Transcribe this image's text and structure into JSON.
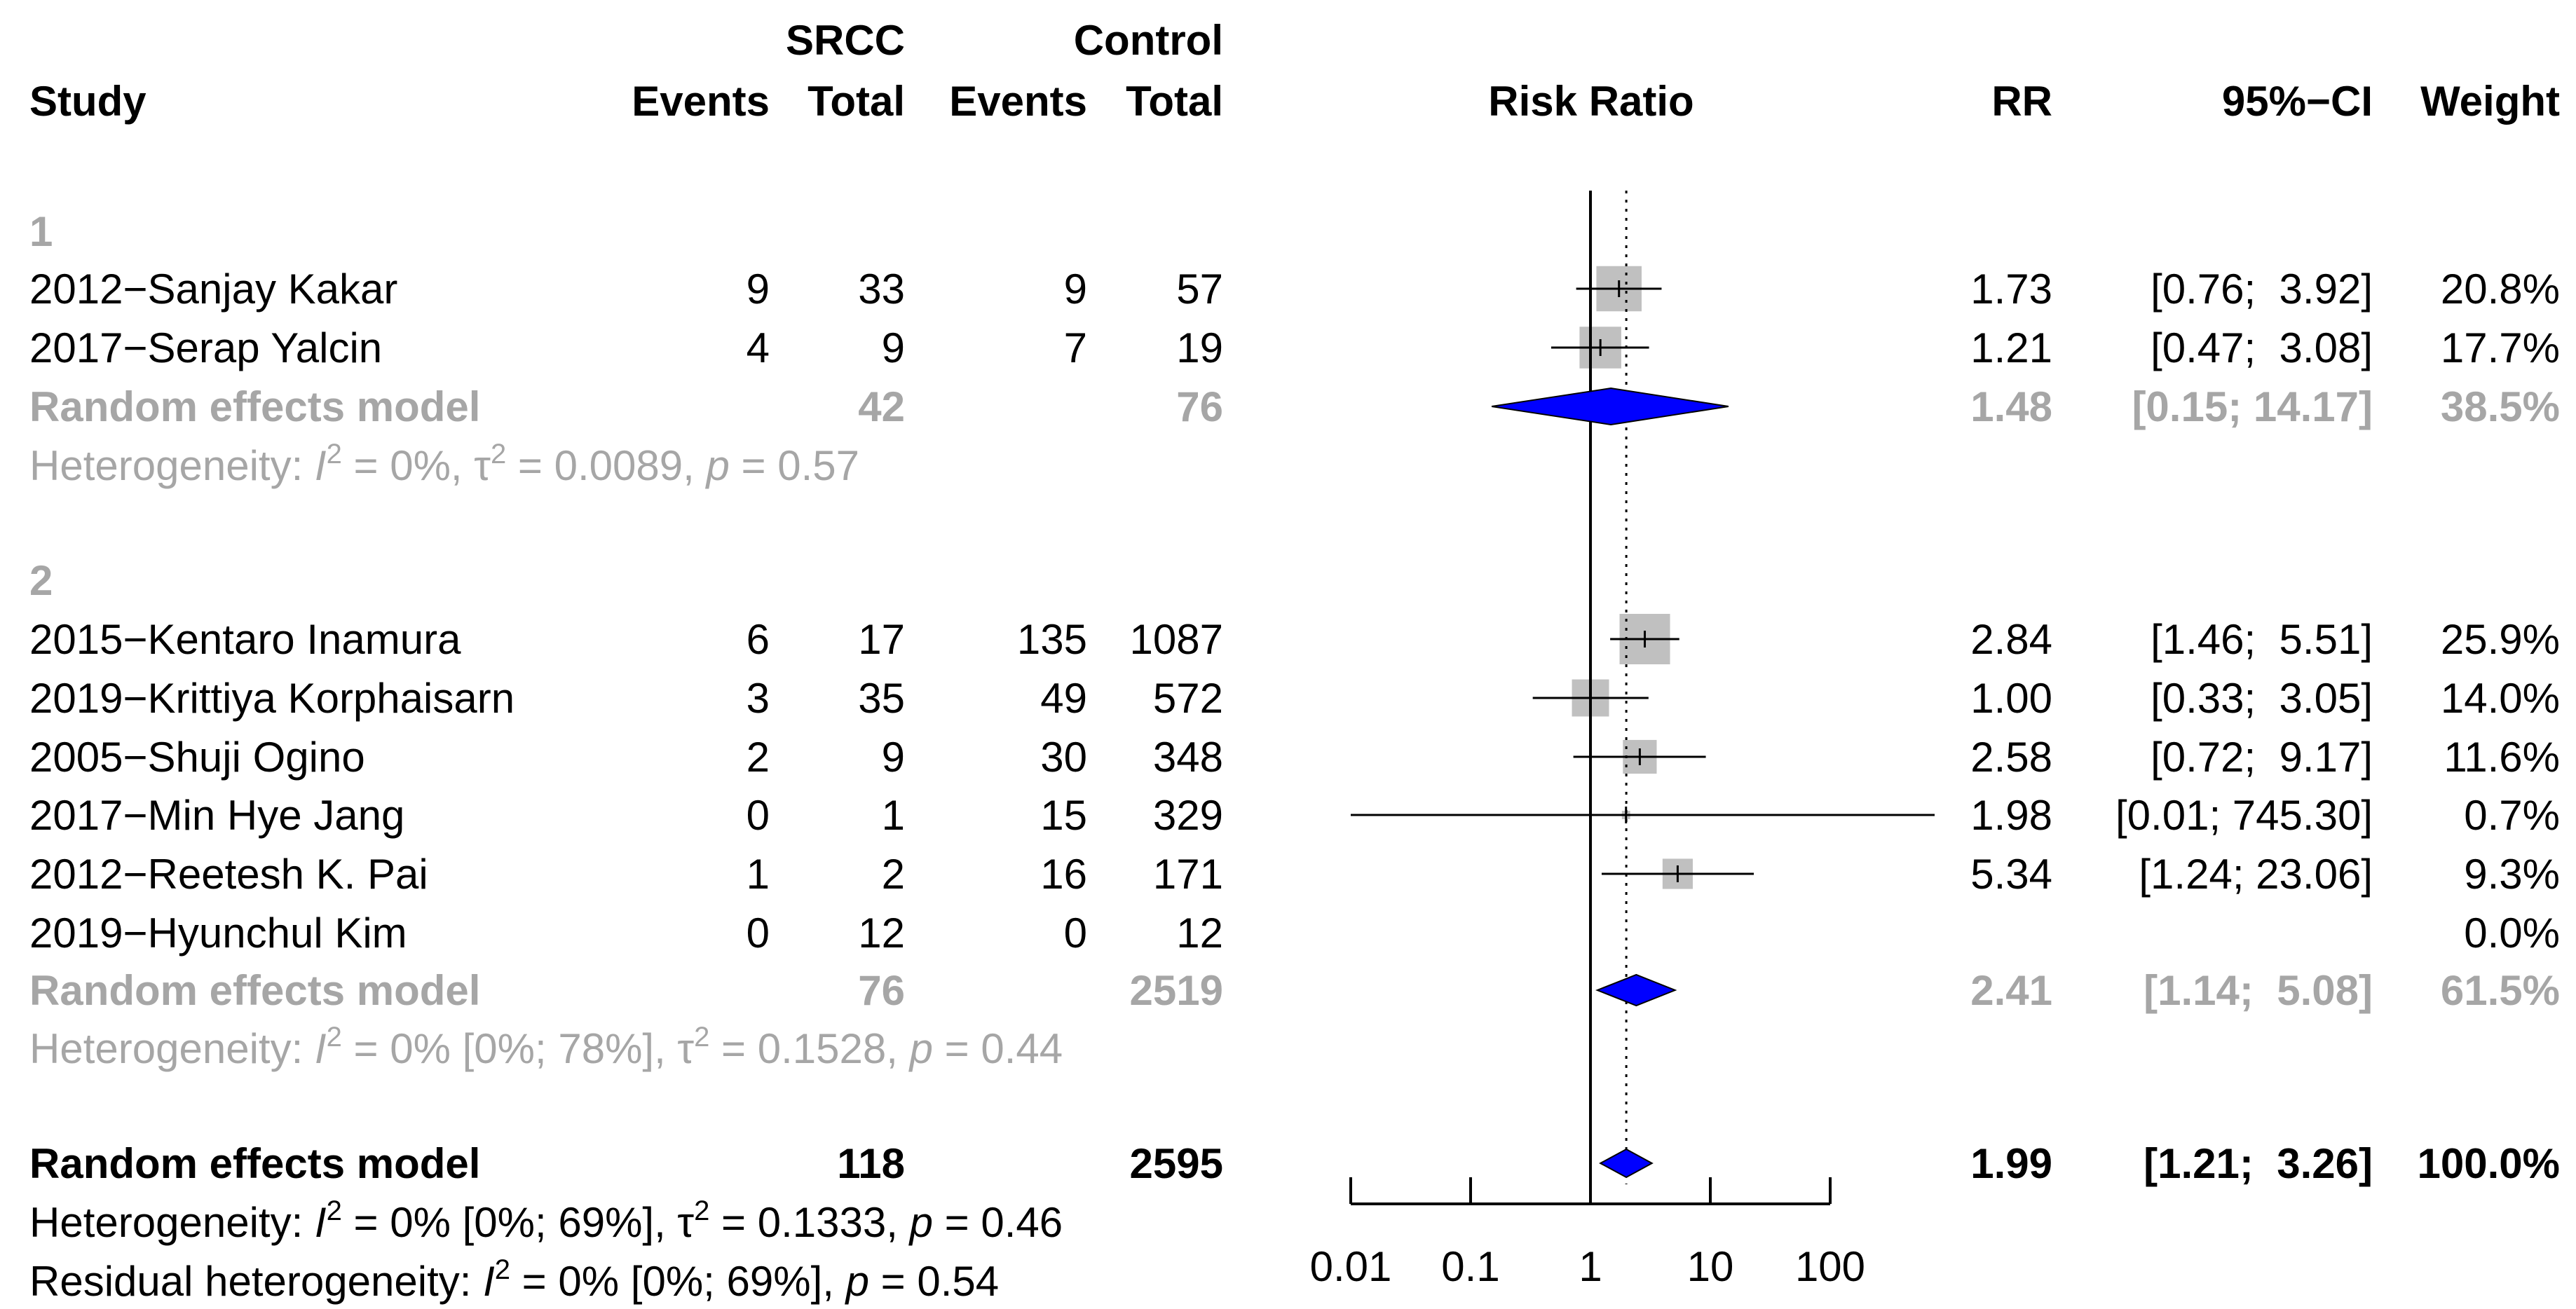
{
  "chart_data": {
    "type": "forest",
    "columns": {
      "study": "Study",
      "srcc_group": "SRCC",
      "control_group": "Control",
      "events": "Events",
      "total": "Total",
      "risk_ratio": "Risk Ratio",
      "rr": "RR",
      "ci": "95%−CI",
      "weight": "Weight"
    },
    "x_axis": {
      "scale": "log10",
      "ticks": [
        0.01,
        0.1,
        1,
        10,
        100
      ],
      "tick_labels": [
        "0.01",
        "0.1",
        "1",
        "10",
        "100"
      ],
      "null_line": 1,
      "pooled_reference": 1.99
    },
    "colors": {
      "text": "#000000",
      "subgroup": "#a6a6a6",
      "box": "#c0c0c0",
      "diamond": "#0000ff",
      "line": "#000000"
    },
    "subgroups": [
      {
        "label": "1",
        "studies": [
          {
            "name": "2012−Sanjay Kakar",
            "e1": "9",
            "n1": "33",
            "e2": "9",
            "n2": "57",
            "rr": 1.73,
            "lo": 0.76,
            "hi": 3.92,
            "weight": 20.8,
            "rr_text": "1.73",
            "ci_text": "[0.76;  3.92]",
            "weight_text": "20.8%"
          },
          {
            "name": "2017−Serap Yalcin",
            "e1": "4",
            "n1": "9",
            "e2": "7",
            "n2": "19",
            "rr": 1.21,
            "lo": 0.47,
            "hi": 3.08,
            "weight": 17.7,
            "rr_text": "1.21",
            "ci_text": "[0.47;  3.08]",
            "weight_text": "17.7%"
          }
        ],
        "model": {
          "label": "Random effects model",
          "n1": "42",
          "n2": "76",
          "rr": 1.48,
          "lo": 0.15,
          "hi": 14.17,
          "rr_text": "1.48",
          "ci_text": "[0.15; 14.17]",
          "weight_text": "38.5%"
        },
        "heterogeneity": {
          "prefix": "Heterogeneity: ",
          "i2": "I",
          "i2_sup": "2",
          "i2_value": " = 0%, ",
          "tau": "τ",
          "tau_sup": "2",
          "tau_value": " = 0.0089, ",
          "p": "p",
          "p_value": " = 0.57"
        }
      },
      {
        "label": "2",
        "studies": [
          {
            "name": "2015−Kentaro Inamura",
            "e1": "6",
            "n1": "17",
            "e2": "135",
            "n2": "1087",
            "rr": 2.84,
            "lo": 1.46,
            "hi": 5.51,
            "weight": 25.9,
            "rr_text": "2.84",
            "ci_text": "[1.46;  5.51]",
            "weight_text": "25.9%"
          },
          {
            "name": "2019−Krittiya Korphaisarn",
            "e1": "3",
            "n1": "35",
            "e2": "49",
            "n2": "572",
            "rr": 1.0,
            "lo": 0.33,
            "hi": 3.05,
            "weight": 14.0,
            "rr_text": "1.00",
            "ci_text": "[0.33;  3.05]",
            "weight_text": "14.0%"
          },
          {
            "name": "2005−Shuji Ogino",
            "e1": "2",
            "n1": "9",
            "e2": "30",
            "n2": "348",
            "rr": 2.58,
            "lo": 0.72,
            "hi": 9.17,
            "weight": 11.6,
            "rr_text": "2.58",
            "ci_text": "[0.72;  9.17]",
            "weight_text": "11.6%"
          },
          {
            "name": "2017−Min Hye Jang",
            "e1": "0",
            "n1": "1",
            "e2": "15",
            "n2": "329",
            "rr": 1.98,
            "lo": 0.01,
            "hi": 745.3,
            "weight": 0.7,
            "rr_text": "1.98",
            "ci_text": "[0.01; 745.30]",
            "weight_text": "0.7%"
          },
          {
            "name": "2012−Reetesh K. Pai",
            "e1": "1",
            "n1": "2",
            "e2": "16",
            "n2": "171",
            "rr": 5.34,
            "lo": 1.24,
            "hi": 23.06,
            "weight": 9.3,
            "rr_text": "5.34",
            "ci_text": "[1.24; 23.06]",
            "weight_text": "9.3%"
          },
          {
            "name": "2019−Hyunchul Kim",
            "e1": "0",
            "n1": "12",
            "e2": "0",
            "n2": "12",
            "rr": null,
            "lo": null,
            "hi": null,
            "weight": 0.0,
            "rr_text": "",
            "ci_text": "",
            "weight_text": "0.0%"
          }
        ],
        "model": {
          "label": "Random effects model",
          "n1": "76",
          "n2": "2519",
          "rr": 2.41,
          "lo": 1.14,
          "hi": 5.08,
          "rr_text": "2.41",
          "ci_text": "[1.14;  5.08]",
          "weight_text": "61.5%"
        },
        "heterogeneity": {
          "prefix": "Heterogeneity: ",
          "i2": "I",
          "i2_sup": "2",
          "i2_value": " = 0% [0%; 78%], ",
          "tau": "τ",
          "tau_sup": "2",
          "tau_value": " = 0.1528, ",
          "p": "p",
          "p_value": " = 0.44"
        }
      }
    ],
    "overall": {
      "label": "Random effects model",
      "n1": "118",
      "n2": "2595",
      "rr": 1.99,
      "lo": 1.21,
      "hi": 3.26,
      "rr_text": "1.99",
      "ci_text": "[1.21;  3.26]",
      "weight_text": "100.0%",
      "heterogeneity": {
        "prefix": "Heterogeneity: ",
        "i2": "I",
        "i2_sup": "2",
        "i2_value": " = 0% [0%; 69%], ",
        "tau": "τ",
        "tau_sup": "2",
        "tau_value": " = 0.1333, ",
        "p": "p",
        "p_value": " = 0.46"
      },
      "residual": {
        "prefix": "Residual heterogeneity: ",
        "i2": "I",
        "i2_sup": "2",
        "i2_value": " = 0% [0%; 69%], ",
        "p": "p",
        "p_value": " = 0.54"
      }
    }
  }
}
